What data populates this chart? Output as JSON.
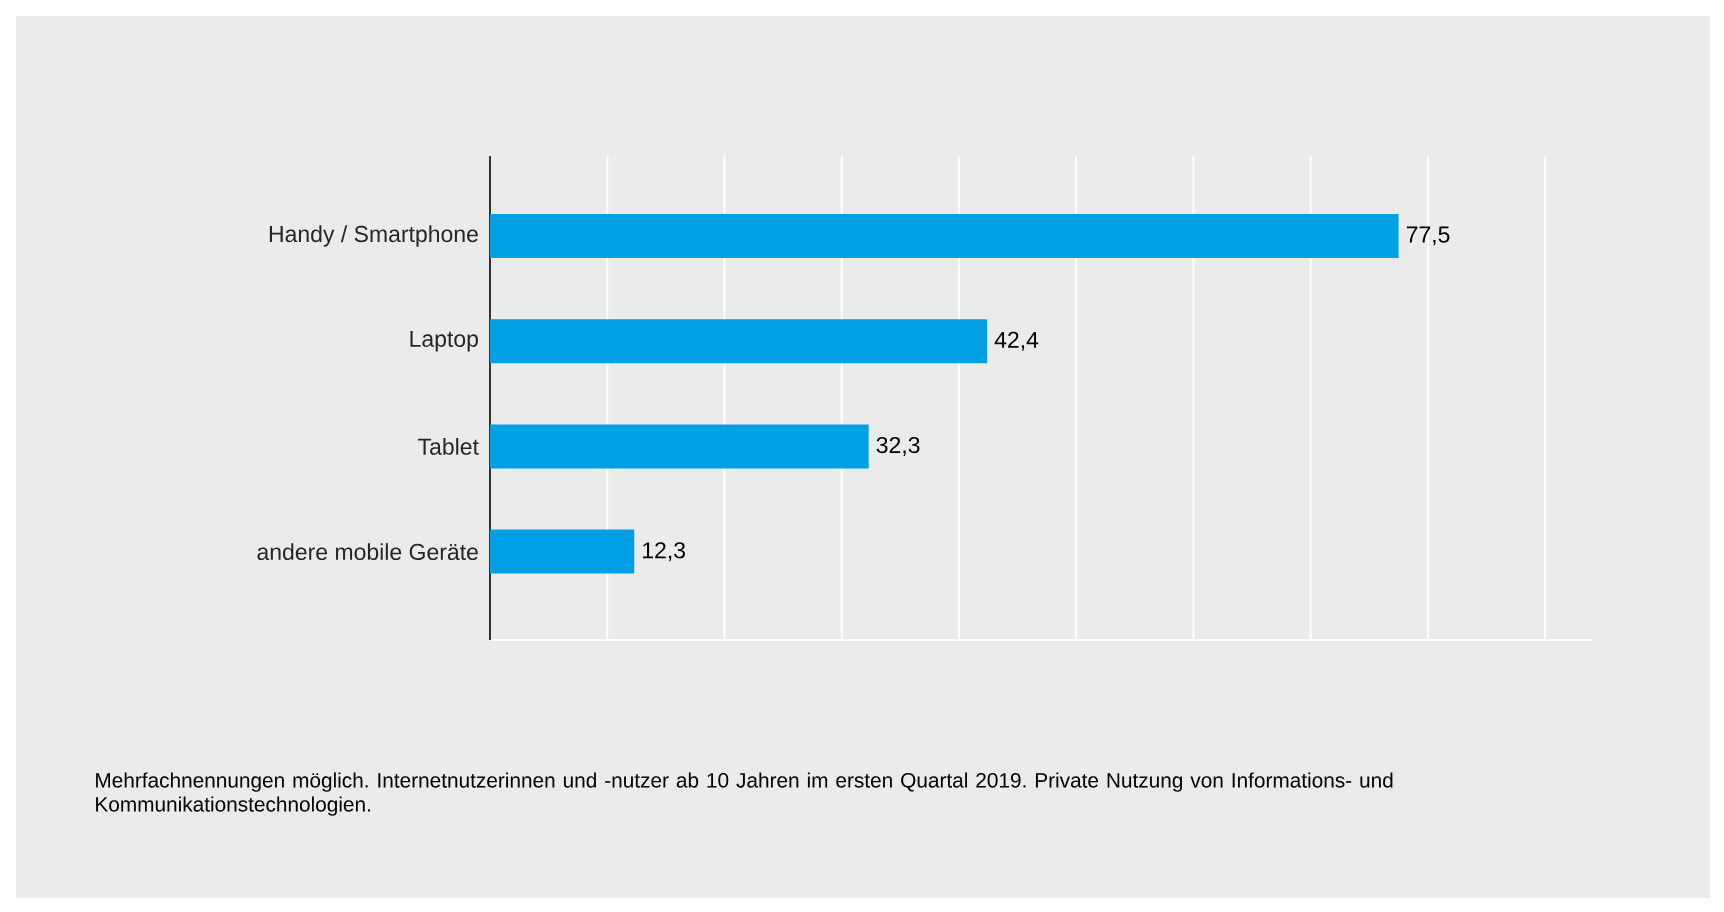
{
  "chart_data": {
    "type": "bar",
    "orientation": "horizontal",
    "categories": [
      "Handy / Smartphone",
      "Laptop",
      "Tablet",
      "andere mobile Geräte"
    ],
    "values": [
      77.5,
      42.4,
      32.3,
      12.3
    ],
    "value_labels": [
      "77,5",
      "42,4",
      "32,3",
      "12,3"
    ],
    "color": "#009fe3",
    "xlim": [
      0,
      94
    ],
    "xticks": [
      {
        "value": 0,
        "label": null
      },
      {
        "value": 10,
        "label": null
      },
      {
        "value": 20,
        "label": null
      },
      {
        "value": 30,
        "label": null
      },
      {
        "value": 40,
        "label": null
      },
      {
        "value": 50,
        "label": null
      },
      {
        "value": 60,
        "label": null
      },
      {
        "value": 70,
        "label": null
      },
      {
        "value": 80,
        "label": null
      },
      {
        "value": 90,
        "label": null
      }
    ],
    "grid": "x",
    "tick_labels": "y",
    "annotations": [
      "Mehrfachnennungen möglich. Internetnutzerinnen und -nutzer ab 10 Jahren im ersten Quartal 2019. Private Nutzung von Informations- und Kommunikationstechnologien."
    ]
  }
}
